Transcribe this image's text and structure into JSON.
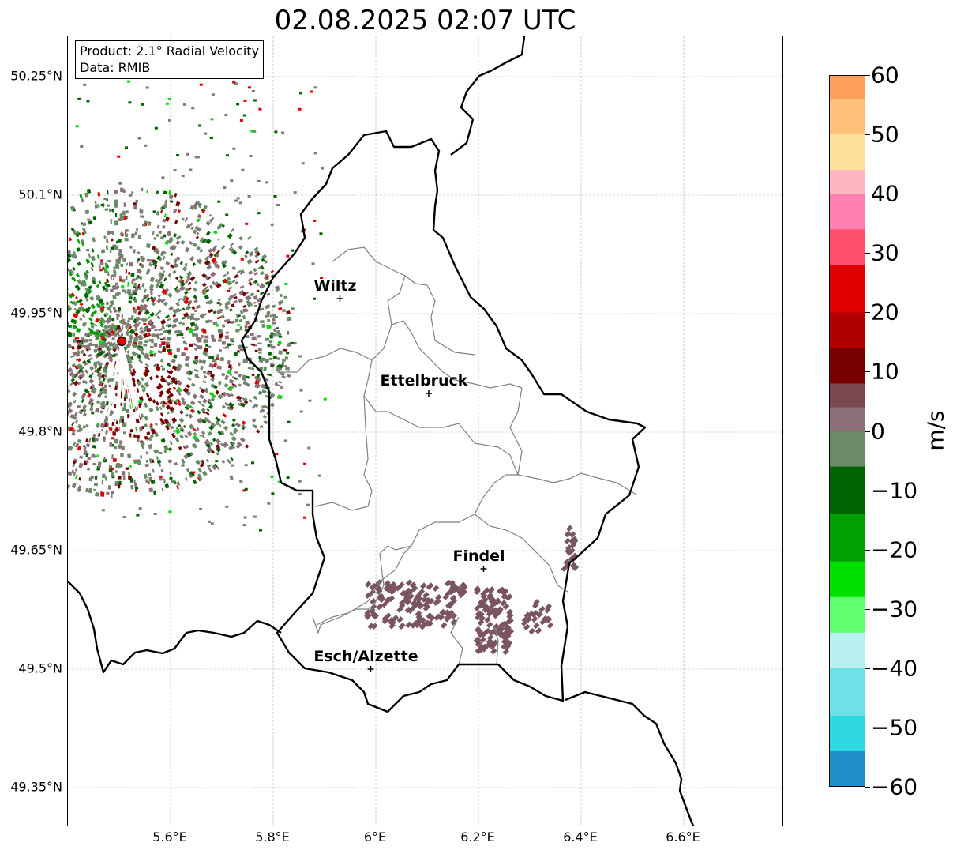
{
  "title": "02.08.2025 02:07 UTC",
  "info": {
    "product": "Product: 2.1° Radial Velocity",
    "data_source": "Data: RMIB"
  },
  "map": {
    "lon_range": [
      5.4,
      6.8
    ],
    "lat_range": [
      49.3,
      50.3
    ],
    "lon_ticks": [
      "5.6°E",
      "5.8°E",
      "6°E",
      "6.2°E",
      "6.4°E",
      "6.6°E"
    ],
    "lon_tick_values": [
      5.6,
      5.8,
      6.0,
      6.2,
      6.4,
      6.6
    ],
    "lat_ticks": [
      "50.25°N",
      "50.1°N",
      "49.95°N",
      "49.8°N",
      "49.65°N",
      "49.5°N",
      "49.35°N"
    ],
    "lat_tick_values": [
      50.25,
      50.1,
      49.95,
      49.8,
      49.65,
      49.5,
      49.35
    ],
    "grid": true,
    "radar_site": {
      "lon": 5.505,
      "lat": 49.915,
      "color": "#e00000"
    },
    "cities": [
      {
        "name": "Wiltz",
        "lon": 5.93,
        "lat": 49.969
      },
      {
        "name": "Ettelbruck",
        "lon": 6.103,
        "lat": 49.849
      },
      {
        "name": "Findel",
        "lon": 6.21,
        "lat": 49.627
      },
      {
        "name": "Esch/Alzette",
        "lon": 5.99,
        "lat": 49.5
      }
    ]
  },
  "colorbar": {
    "label": "m/s",
    "ticks": [
      "60",
      "50",
      "40",
      "30",
      "20",
      "10",
      "0",
      "−10",
      "−20",
      "−30",
      "−40",
      "−50",
      "−60"
    ],
    "tick_values": [
      60,
      50,
      40,
      30,
      20,
      10,
      0,
      -10,
      -20,
      -30,
      -40,
      -50,
      -60
    ],
    "range": [
      -60,
      60
    ],
    "colors": [
      {
        "from": 56,
        "to": 60,
        "color": "#ffa05a"
      },
      {
        "from": 50,
        "to": 56,
        "color": "#ffc07a"
      },
      {
        "from": 44,
        "to": 50,
        "color": "#ffe09a"
      },
      {
        "from": 40,
        "to": 44,
        "color": "#ffb6c1"
      },
      {
        "from": 34,
        "to": 40,
        "color": "#ff80b0"
      },
      {
        "from": 28,
        "to": 34,
        "color": "#ff5070"
      },
      {
        "from": 20,
        "to": 28,
        "color": "#e00000"
      },
      {
        "from": 14,
        "to": 20,
        "color": "#b00000"
      },
      {
        "from": 8,
        "to": 14,
        "color": "#780000"
      },
      {
        "from": 4,
        "to": 8,
        "color": "#7a4850"
      },
      {
        "from": 0,
        "to": 4,
        "color": "#8a7078"
      },
      {
        "from": -6,
        "to": 0,
        "color": "#6a8a68"
      },
      {
        "from": -14,
        "to": -6,
        "color": "#006400"
      },
      {
        "from": -22,
        "to": -14,
        "color": "#00a000"
      },
      {
        "from": -28,
        "to": -22,
        "color": "#00e000"
      },
      {
        "from": -34,
        "to": -28,
        "color": "#60ff70"
      },
      {
        "from": -40,
        "to": -34,
        "color": "#b8f0f0"
      },
      {
        "from": -48,
        "to": -40,
        "color": "#70e0e8"
      },
      {
        "from": -54,
        "to": -48,
        "color": "#30d8e0"
      },
      {
        "from": -60,
        "to": -54,
        "color": "#2090c8"
      }
    ]
  }
}
